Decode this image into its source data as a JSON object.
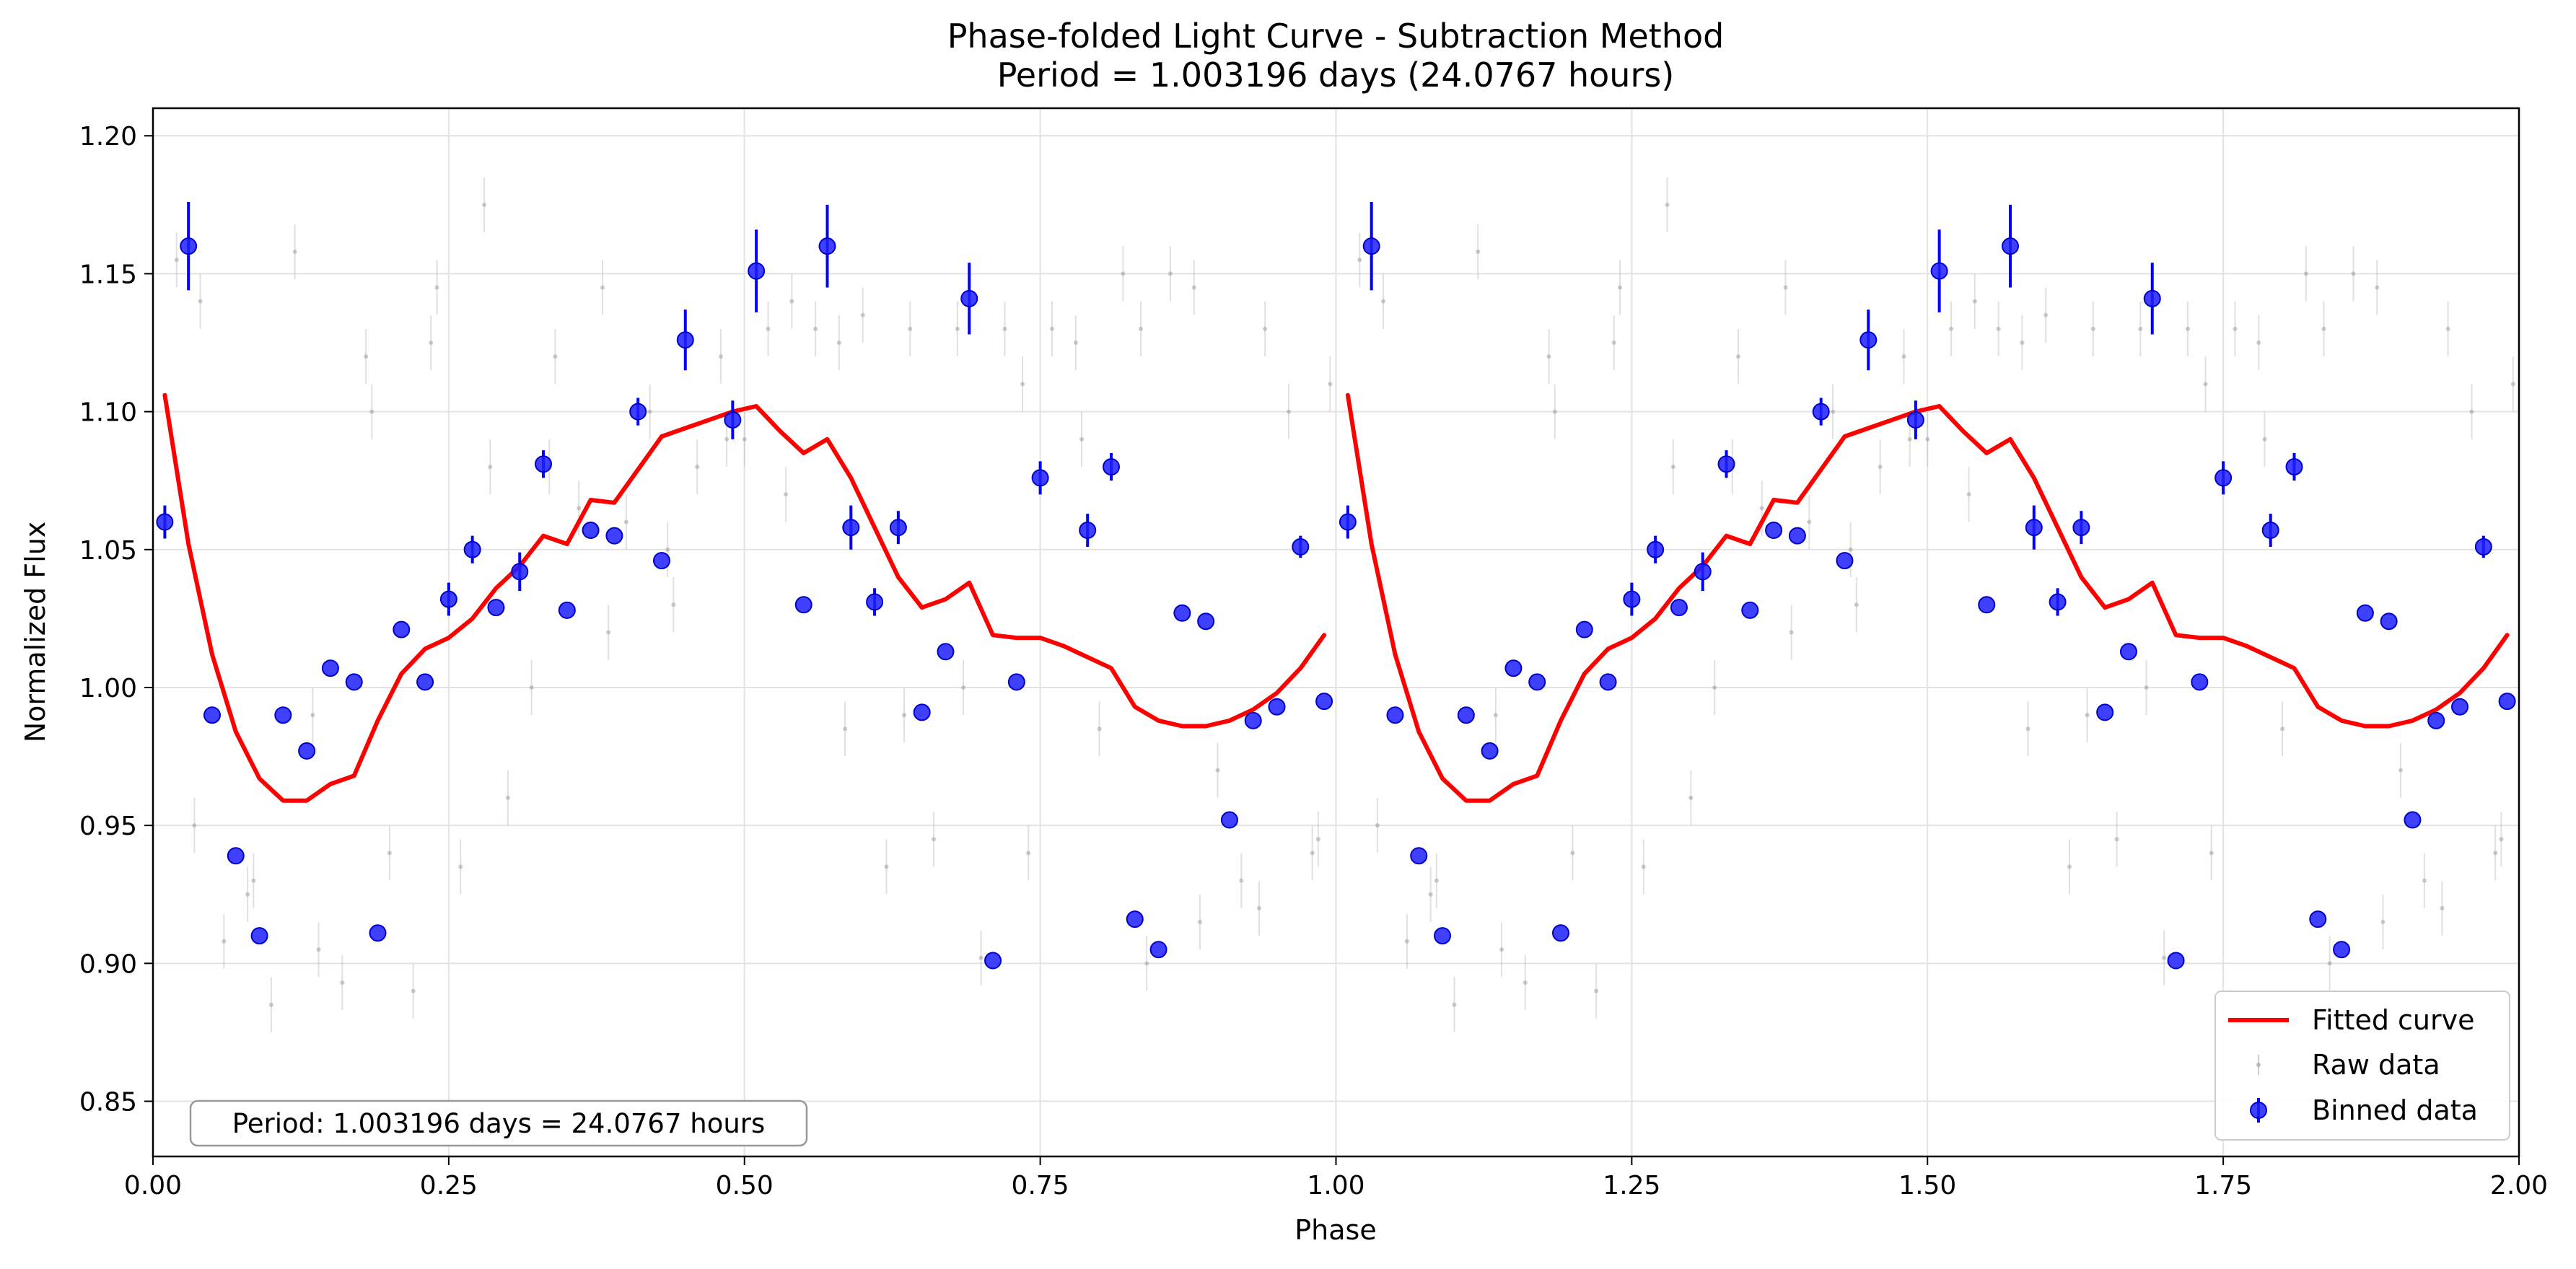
{
  "chart_data": {
    "type": "scatter",
    "title": "Phase-folded Light Curve - Subtraction Method",
    "subtitle": "Period = 1.003196 days (24.0767 hours)",
    "xlabel": "Phase",
    "ylabel": "Normalized Flux",
    "xlim": [
      0.0,
      2.0
    ],
    "ylim": [
      0.83,
      1.21
    ],
    "xticks": [
      0.0,
      0.25,
      0.5,
      0.75,
      1.0,
      1.25,
      1.5,
      1.75,
      2.0
    ],
    "xtick_labels": [
      "0.00",
      "0.25",
      "0.50",
      "0.75",
      "1.00",
      "1.25",
      "1.50",
      "1.75",
      "2.00"
    ],
    "yticks": [
      0.85,
      0.9,
      0.95,
      1.0,
      1.05,
      1.1,
      1.15,
      1.2
    ],
    "ytick_labels": [
      "0.85",
      "0.90",
      "0.95",
      "1.00",
      "1.05",
      "1.10",
      "1.15",
      "1.20"
    ],
    "grid": true,
    "legend_position": "bottom-right",
    "annotation": "Period: 1.003196 days = 24.0767 hours",
    "colors": {
      "fitted": "#ff0000",
      "binned": "#0000ff",
      "raw": "#bbbbbb",
      "grid": "#e3e3e3"
    },
    "series": [
      {
        "name": "Fitted curve",
        "kind": "line",
        "x": [
          0.01,
          0.03,
          0.05,
          0.07,
          0.09,
          0.11,
          0.13,
          0.15,
          0.17,
          0.19,
          0.21,
          0.23,
          0.25,
          0.27,
          0.29,
          0.31,
          0.33,
          0.35,
          0.37,
          0.39,
          0.41,
          0.43,
          0.45,
          0.47,
          0.49,
          0.51,
          0.53,
          0.55,
          0.57,
          0.59,
          0.61,
          0.63,
          0.65,
          0.67,
          0.69,
          0.71,
          0.73,
          0.75,
          0.77,
          0.79,
          0.81,
          0.83,
          0.85,
          0.87,
          0.89,
          0.91,
          0.93,
          0.95,
          0.97,
          0.99
        ],
        "y": [
          1.106,
          1.052,
          1.012,
          0.984,
          0.967,
          0.959,
          0.959,
          0.965,
          0.968,
          0.988,
          1.005,
          1.014,
          1.018,
          1.025,
          1.036,
          1.044,
          1.055,
          1.052,
          1.068,
          1.067,
          1.079,
          1.091,
          1.094,
          1.097,
          1.1,
          1.102,
          1.093,
          1.085,
          1.09,
          1.076,
          1.058,
          1.04,
          1.029,
          1.032,
          1.038,
          1.019,
          1.018,
          1.018,
          1.015,
          1.011,
          1.007,
          0.993,
          0.988,
          0.986,
          0.986,
          0.988,
          0.992,
          0.998,
          1.007,
          1.019
        ]
      },
      {
        "name": "Raw data",
        "kind": "scatter",
        "x": [
          0.02,
          0.04,
          0.06,
          0.08,
          0.1,
          0.12,
          0.14,
          0.16,
          0.18,
          0.2,
          0.22,
          0.24,
          0.26,
          0.28,
          0.3,
          0.32,
          0.34,
          0.36,
          0.38,
          0.4,
          0.42,
          0.44,
          0.46,
          0.48,
          0.5,
          0.52,
          0.54,
          0.56,
          0.58,
          0.6,
          0.62,
          0.64,
          0.66,
          0.68,
          0.7,
          0.72,
          0.74,
          0.76,
          0.78,
          0.8,
          0.82,
          0.84,
          0.86,
          0.88,
          0.9,
          0.92,
          0.94,
          0.96,
          0.98,
          0.995,
          0.035,
          0.085,
          0.135,
          0.185,
          0.235,
          0.285,
          0.335,
          0.385,
          0.435,
          0.485,
          0.535,
          0.585,
          0.635,
          0.685,
          0.735,
          0.785,
          0.835,
          0.885,
          0.935,
          0.985
        ],
        "y": [
          1.155,
          1.14,
          0.908,
          0.925,
          0.885,
          1.158,
          0.905,
          0.893,
          1.12,
          0.94,
          0.89,
          1.145,
          0.935,
          1.175,
          0.96,
          1.0,
          1.12,
          1.065,
          1.145,
          1.06,
          1.1,
          1.03,
          1.08,
          1.12,
          1.09,
          1.13,
          1.14,
          1.13,
          1.125,
          1.135,
          0.935,
          1.13,
          0.945,
          1.13,
          0.902,
          1.13,
          0.94,
          1.13,
          1.125,
          0.985,
          1.15,
          0.9,
          1.15,
          1.145,
          0.97,
          0.93,
          1.13,
          1.1,
          0.94,
          1.11,
          0.95,
          0.93,
          0.99,
          1.1,
          1.125,
          1.08,
          1.08,
          1.02,
          1.05,
          1.09,
          1.07,
          0.985,
          0.99,
          1.0,
          1.11,
          1.09,
          1.13,
          0.915,
          0.92,
          0.945
        ]
      },
      {
        "name": "Binned data",
        "kind": "errorbar",
        "x": [
          0.01,
          0.03,
          0.05,
          0.07,
          0.09,
          0.11,
          0.13,
          0.15,
          0.17,
          0.19,
          0.21,
          0.23,
          0.25,
          0.27,
          0.29,
          0.31,
          0.33,
          0.35,
          0.37,
          0.39,
          0.41,
          0.43,
          0.45,
          0.49,
          0.51,
          0.55,
          0.57,
          0.59,
          0.61,
          0.63,
          0.65,
          0.67,
          0.69,
          0.71,
          0.73,
          0.75,
          0.79,
          0.81,
          0.83,
          0.85,
          0.87,
          0.89,
          0.91,
          0.93,
          0.95,
          0.97,
          0.99
        ],
        "y": [
          1.06,
          1.16,
          0.99,
          0.939,
          0.91,
          0.99,
          0.977,
          1.007,
          1.002,
          0.911,
          1.021,
          1.002,
          1.032,
          1.05,
          1.029,
          1.042,
          1.081,
          1.028,
          1.057,
          1.055,
          1.1,
          1.046,
          1.126,
          1.097,
          1.151,
          1.03,
          1.16,
          1.058,
          1.031,
          1.058,
          0.991,
          1.013,
          1.141,
          0.901,
          1.002,
          1.076,
          1.057,
          1.08,
          0.916,
          0.905,
          1.027,
          1.024,
          0.952,
          0.988,
          0.993,
          1.051,
          0.995
        ],
        "err": [
          0.006,
          0.016,
          0.0,
          0.0,
          0.0,
          0.0,
          0.0,
          0.0,
          0.0,
          0.0,
          0.0,
          0.0,
          0.006,
          0.005,
          0.0,
          0.007,
          0.005,
          0.0,
          0.0,
          0.0,
          0.005,
          0.0,
          0.011,
          0.007,
          0.015,
          0.0,
          0.015,
          0.008,
          0.005,
          0.006,
          0.0,
          0.0,
          0.013,
          0.0,
          0.0,
          0.006,
          0.006,
          0.005,
          0.0,
          0.0,
          0.0,
          0.0,
          0.0,
          0.0,
          0.0,
          0.004,
          0.0
        ]
      }
    ]
  }
}
